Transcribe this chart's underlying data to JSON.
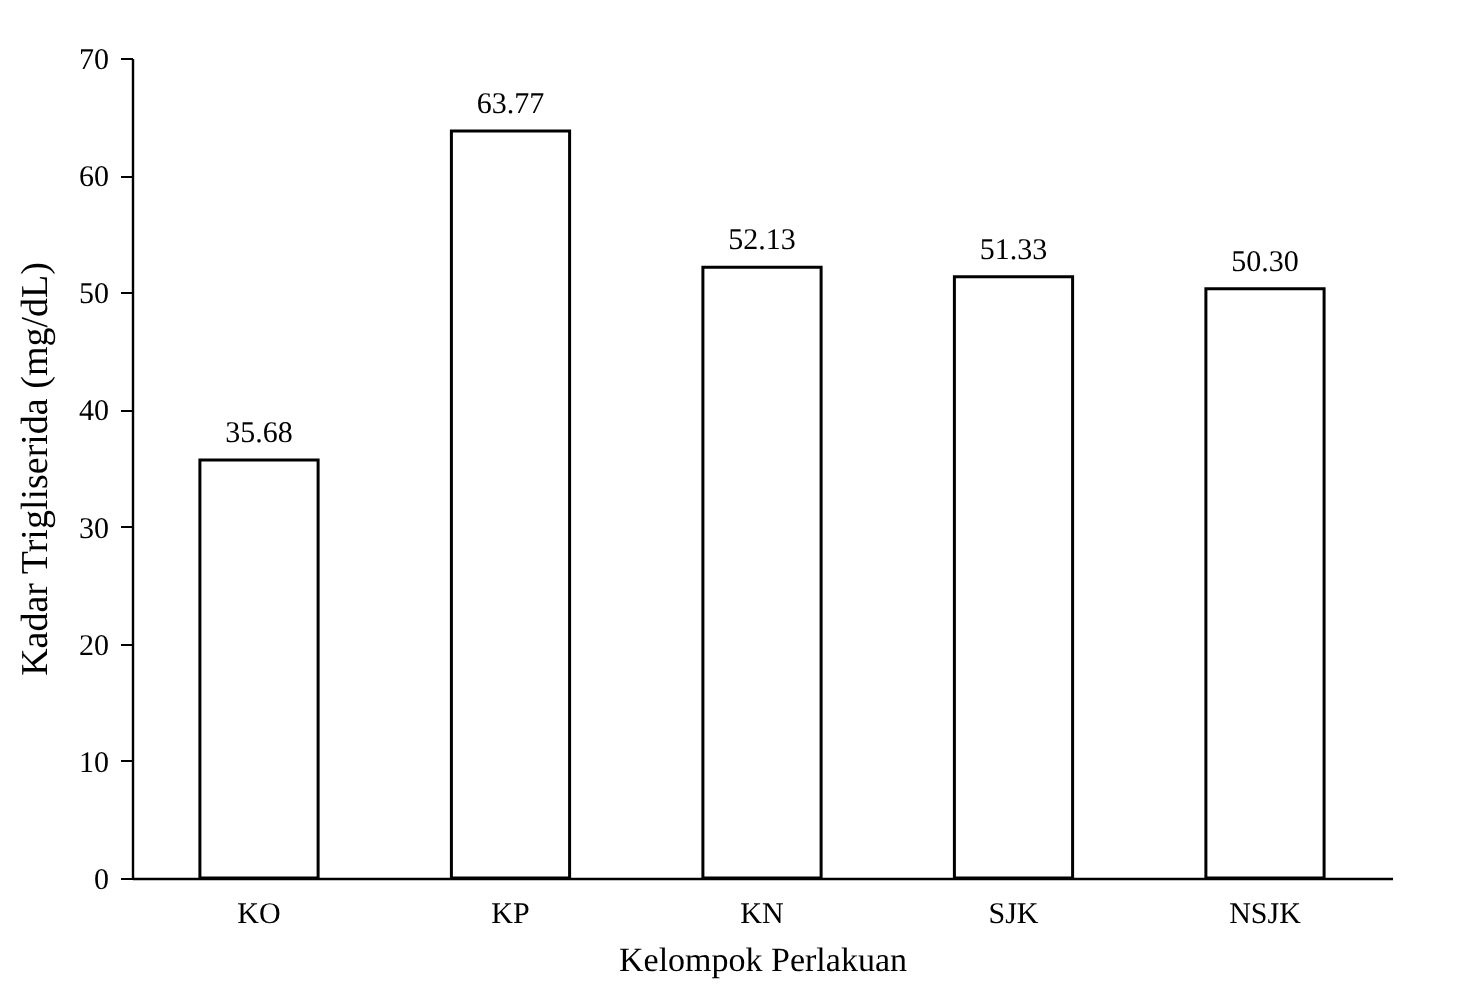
{
  "chart_data": {
    "type": "bar",
    "xlabel": "Kelompok Perlakuan",
    "ylabel": "Kadar Trigliserida (mg/dL)",
    "categories": [
      "KO",
      "KP",
      "KN",
      "SJK",
      "NSJK"
    ],
    "values": [
      35.68,
      63.77,
      52.13,
      51.33,
      50.3
    ],
    "value_labels": [
      "35.68",
      "63.77",
      "52.13",
      "51.33",
      "50.30"
    ],
    "color": "#ffffff",
    "ylim": [
      0,
      70
    ],
    "yticks": [
      0,
      10,
      20,
      30,
      40,
      50,
      60,
      70
    ],
    "grid": false
  }
}
